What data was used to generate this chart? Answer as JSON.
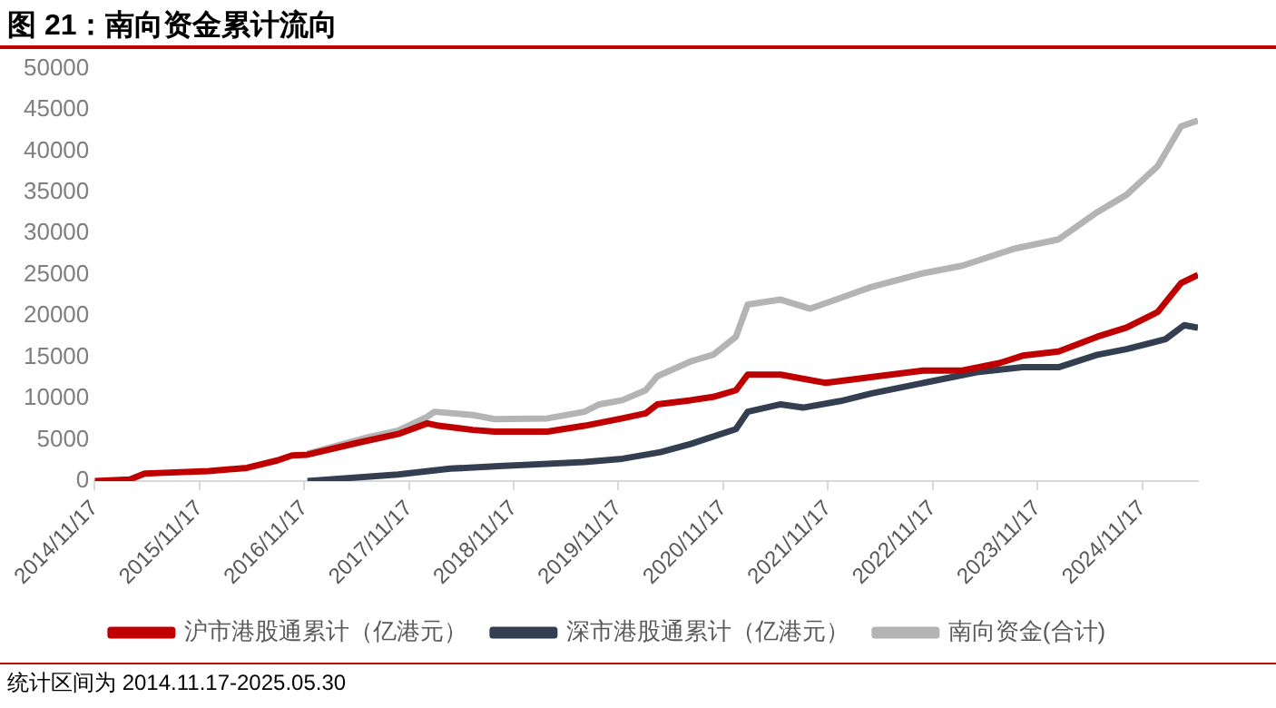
{
  "chart_data": {
    "type": "line",
    "title": "图 21：南向资金累计流向",
    "annotations": [
      "统计区间为 2014.11.17-2025.05.30"
    ],
    "xlim": [
      "2014-11-17",
      "2025-05-30"
    ],
    "xticks": [
      {
        "value": "2014-11-17",
        "label": "2014/11/17"
      },
      {
        "value": "2015-11-17",
        "label": "2015/11/17"
      },
      {
        "value": "2016-11-17",
        "label": "2016/11/17"
      },
      {
        "value": "2017-11-17",
        "label": "2017/11/17"
      },
      {
        "value": "2018-11-17",
        "label": "2018/11/17"
      },
      {
        "value": "2019-11-17",
        "label": "2019/11/17"
      },
      {
        "value": "2020-11-17",
        "label": "2020/11/17"
      },
      {
        "value": "2021-11-17",
        "label": "2021/11/17"
      },
      {
        "value": "2022-11-17",
        "label": "2022/11/17"
      },
      {
        "value": "2023-11-17",
        "label": "2023/11/17"
      },
      {
        "value": "2024-11-17",
        "label": "2024/11/17"
      }
    ],
    "ylim": [
      0,
      50000
    ],
    "yticks": [
      0,
      5000,
      10000,
      15000,
      20000,
      25000,
      30000,
      35000,
      40000,
      45000,
      50000
    ],
    "grid": false,
    "legend": "bottom",
    "marker": "none",
    "line_style": "solid",
    "series": [
      {
        "name": "沪市港股通累计（亿港元）",
        "color": "#c00000",
        "x": [
          "2014-11-17",
          "2015-03-20",
          "2015-05-10",
          "2015-07-15",
          "2015-12-20",
          "2016-05-01",
          "2016-08-15",
          "2016-10-05",
          "2016-11-28",
          "2017-05-30",
          "2017-10-10",
          "2018-01-20",
          "2018-03-01",
          "2018-06-28",
          "2018-09-12",
          "2019-03-15",
          "2019-07-22",
          "2019-12-01",
          "2020-02-20",
          "2020-04-01",
          "2020-07-26",
          "2020-10-12",
          "2020-12-31",
          "2021-02-10",
          "2021-06-05",
          "2021-11-10",
          "2022-04-15",
          "2022-10-15",
          "2023-02-28",
          "2023-07-08",
          "2023-09-27",
          "2024-01-30",
          "2024-06-13",
          "2024-09-23",
          "2025-01-10",
          "2025-04-01",
          "2025-05-30"
        ],
        "values": [
          0,
          200,
          900,
          1000,
          1200,
          1600,
          2500,
          3100,
          3200,
          4700,
          5700,
          7000,
          6700,
          6200,
          6000,
          6000,
          6700,
          7600,
          8200,
          9300,
          9800,
          10200,
          11000,
          12900,
          12900,
          11900,
          12600,
          13400,
          13400,
          14300,
          15200,
          15700,
          17500,
          18600,
          20500,
          24000,
          25000
        ]
      },
      {
        "name": "深市港股通累计（亿港元）",
        "color": "#333f50",
        "x": [
          "2016-11-28",
          "2017-10-10",
          "2018-04-10",
          "2018-09-27",
          "2019-07-22",
          "2019-12-01",
          "2020-04-12",
          "2020-07-26",
          "2020-12-31",
          "2021-02-10",
          "2021-06-05",
          "2021-08-22",
          "2021-12-31",
          "2022-04-15",
          "2022-11-14",
          "2023-04-20",
          "2023-09-27",
          "2024-01-30",
          "2024-06-13",
          "2024-09-23",
          "2025-02-06",
          "2025-04-12",
          "2025-05-30"
        ],
        "values": [
          0,
          800,
          1500,
          1800,
          2300,
          2700,
          3500,
          4500,
          6300,
          8400,
          9300,
          8900,
          9700,
          10600,
          12100,
          13200,
          13800,
          13800,
          15300,
          16000,
          17200,
          18900,
          18600
        ]
      },
      {
        "name": "南向资金(合计)",
        "color": "#b4b4b4",
        "x": [
          "2016-11-28",
          "2017-06-25",
          "2017-10-10",
          "2018-01-20",
          "2018-02-14",
          "2018-06-28",
          "2018-09-12",
          "2019-03-15",
          "2019-07-22",
          "2019-09-12",
          "2019-12-01",
          "2020-02-20",
          "2020-04-01",
          "2020-07-26",
          "2020-10-12",
          "2020-12-31",
          "2021-02-10",
          "2021-06-05",
          "2021-09-16",
          "2021-12-31",
          "2022-04-15",
          "2022-10-15",
          "2023-02-28",
          "2023-09-01",
          "2024-01-30",
          "2024-06-13",
          "2024-09-23",
          "2025-01-10",
          "2025-04-01",
          "2025-05-30"
        ],
        "values": [
          3300,
          5300,
          6100,
          7800,
          8400,
          8000,
          7500,
          7600,
          8400,
          9300,
          9800,
          11000,
          12700,
          14500,
          15300,
          17500,
          21400,
          22000,
          20900,
          22200,
          23500,
          25200,
          26100,
          28200,
          29300,
          32600,
          34700,
          38200,
          43000,
          43700
        ]
      }
    ]
  }
}
